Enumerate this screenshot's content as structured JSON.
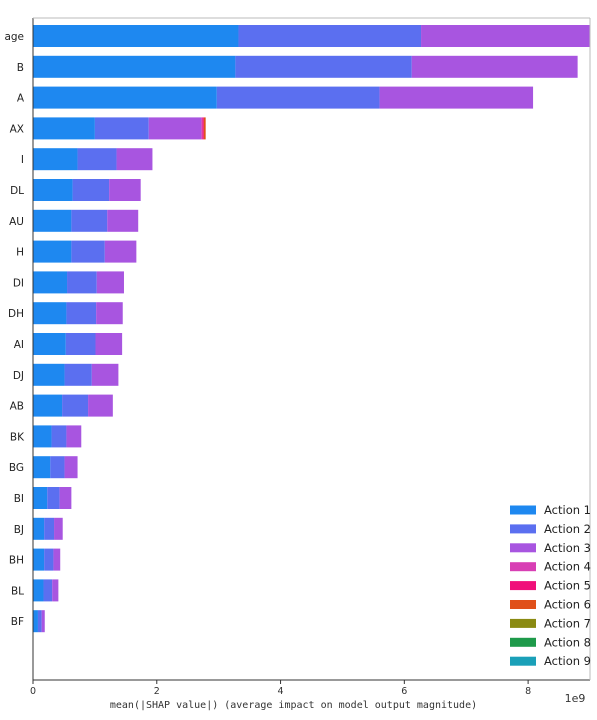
{
  "chart_data": {
    "type": "bar",
    "orientation": "horizontal",
    "stacked": true,
    "xlabel": "mean(|SHAP value|) (average impact on model output magnitude)",
    "x_scale_label": "1e9",
    "xlim": [
      0,
      9
    ],
    "xticks": [
      0,
      2,
      4,
      6,
      8
    ],
    "grid": false,
    "legend_position": "bottom-right",
    "categories": [
      "age",
      "B",
      "A",
      "AX",
      "I",
      "DL",
      "AU",
      "H",
      "DI",
      "DH",
      "AI",
      "DJ",
      "AB",
      "BK",
      "BG",
      "BI",
      "BJ",
      "BH",
      "BL",
      "BF"
    ],
    "series": [
      {
        "name": "Action 1",
        "color": "#1E88F0",
        "values": [
          3.32,
          3.27,
          2.97,
          1.0,
          0.72,
          0.64,
          0.62,
          0.62,
          0.55,
          0.54,
          0.53,
          0.51,
          0.47,
          0.3,
          0.28,
          0.23,
          0.18,
          0.18,
          0.17,
          0.08
        ]
      },
      {
        "name": "Action 2",
        "color": "#5B6FF0",
        "values": [
          2.95,
          2.85,
          2.63,
          0.87,
          0.63,
          0.59,
          0.58,
          0.54,
          0.48,
          0.48,
          0.48,
          0.44,
          0.42,
          0.24,
          0.23,
          0.2,
          0.16,
          0.15,
          0.14,
          0.06
        ]
      },
      {
        "name": "Action 3",
        "color": "#A855E0",
        "values": [
          2.73,
          2.68,
          2.48,
          0.85,
          0.58,
          0.51,
          0.5,
          0.51,
          0.44,
          0.43,
          0.43,
          0.43,
          0.4,
          0.24,
          0.21,
          0.19,
          0.14,
          0.11,
          0.1,
          0.05
        ]
      },
      {
        "name": "Action 4",
        "color": "#D83FB4",
        "values": [
          0,
          0,
          0,
          0.02,
          0,
          0,
          0,
          0,
          0,
          0,
          0,
          0,
          0,
          0,
          0,
          0,
          0,
          0,
          0,
          0
        ]
      },
      {
        "name": "Action 5",
        "color": "#F0107A",
        "values": [
          0,
          0,
          0,
          0.02,
          0,
          0,
          0,
          0,
          0,
          0,
          0,
          0,
          0,
          0,
          0,
          0,
          0,
          0,
          0,
          0
        ]
      },
      {
        "name": "Action 6",
        "color": "#E0501A",
        "values": [
          0,
          0,
          0,
          0.03,
          0,
          0,
          0,
          0,
          0,
          0,
          0,
          0,
          0,
          0,
          0,
          0,
          0,
          0,
          0,
          0
        ]
      },
      {
        "name": "Action 7",
        "color": "#8A8A12",
        "values": [
          0,
          0,
          0,
          0,
          0,
          0,
          0,
          0,
          0,
          0,
          0,
          0,
          0,
          0,
          0,
          0,
          0,
          0,
          0,
          0
        ]
      },
      {
        "name": "Action 8",
        "color": "#1E9A4A",
        "values": [
          0,
          0,
          0,
          0,
          0,
          0,
          0,
          0,
          0,
          0,
          0,
          0,
          0,
          0,
          0,
          0,
          0,
          0,
          0,
          0
        ]
      },
      {
        "name": "Action 9",
        "color": "#1AA0B8",
        "values": [
          0,
          0,
          0,
          0,
          0,
          0,
          0,
          0,
          0,
          0,
          0,
          0,
          0,
          0,
          0,
          0,
          0,
          0,
          0,
          0
        ]
      }
    ]
  }
}
